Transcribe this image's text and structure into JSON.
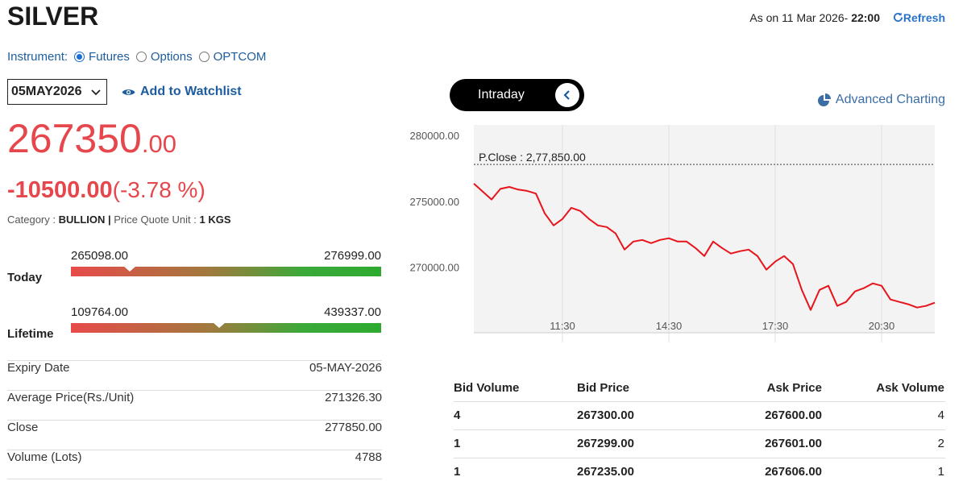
{
  "header": {
    "title": "SILVER",
    "as_on_label": "As on 11 Mar 2026-",
    "as_on_time": "22:00",
    "refresh": "Refresh"
  },
  "instrument": {
    "label": "Instrument:",
    "options": [
      {
        "label": "Futures",
        "selected": true
      },
      {
        "label": "Options",
        "selected": false
      },
      {
        "label": "OPTCOM",
        "selected": false
      }
    ]
  },
  "expiry_select": "05MAY2026",
  "watchlist": "Add to Watchlist",
  "quote": {
    "price_integer": "267350",
    "price_decimal": ".00",
    "change": "-10500.00",
    "change_percent": "(-3.78 %)",
    "category_label": "Category :",
    "category": "BULLION |",
    "unit_label": "Price Quote Unit :",
    "unit": "1 KGS"
  },
  "ranges": [
    {
      "label": "Today",
      "low": "265098.00",
      "high": "276999.00"
    },
    {
      "label": "Lifetime",
      "low": "109764.00",
      "high": "439337.00"
    }
  ],
  "details": [
    [
      "Expiry Date",
      "05-MAY-2026"
    ],
    [
      "Average Price(Rs./Unit)",
      "271326.30"
    ],
    [
      "Close",
      "277850.00"
    ],
    [
      "Volume (Lots)",
      "4788"
    ]
  ],
  "chart": {
    "toggle": "Intraday",
    "advanced": "Advanced Charting",
    "type": "line",
    "color": "#e8141b",
    "prev_close": {
      "value": 277850,
      "label": "P.Close : 2,77,850.00"
    },
    "x": [
      "09:00",
      "09:15",
      "09:30",
      "09:45",
      "10:00",
      "10:15",
      "10:30",
      "10:45",
      "11:00",
      "11:15",
      "11:30",
      "11:45",
      "12:00",
      "12:15",
      "12:30",
      "12:45",
      "13:00",
      "13:15",
      "13:30",
      "13:45",
      "14:00",
      "14:15",
      "14:30",
      "14:45",
      "15:00",
      "15:15",
      "15:30",
      "15:45",
      "16:00",
      "16:15",
      "16:30",
      "16:45",
      "17:00",
      "17:15",
      "17:30",
      "17:45",
      "18:00",
      "18:15",
      "18:30",
      "18:45",
      "19:00",
      "19:15",
      "19:30",
      "19:45",
      "20:00",
      "20:15",
      "20:30",
      "20:45",
      "21:00",
      "21:15",
      "21:30",
      "21:45",
      "22:00"
    ],
    "values": [
      276400,
      275800,
      275200,
      276000,
      276150,
      275950,
      275850,
      275650,
      274150,
      273230,
      273720,
      274570,
      274330,
      273720,
      273230,
      273110,
      272620,
      271400,
      272010,
      272130,
      271890,
      272130,
      272260,
      272010,
      272010,
      271520,
      270910,
      272010,
      271520,
      271100,
      271280,
      271400,
      270910,
      269880,
      270490,
      270910,
      270300,
      268350,
      266830,
      268350,
      268660,
      267130,
      267440,
      268230,
      268480,
      268840,
      268660,
      267620,
      267440,
      267260,
      267010,
      267130,
      267380
    ],
    "xlim": [
      "09:00",
      "22:00"
    ],
    "xticks": [
      "11:30",
      "14:30",
      "17:30",
      "20:30"
    ],
    "ylim": [
      265100,
      280850
    ],
    "yticks": [
      {
        "value": 280000,
        "label": "280000.00"
      },
      {
        "value": 275000,
        "label": "275000.00"
      },
      {
        "value": 270000,
        "label": "270000.00"
      }
    ]
  },
  "order_book": {
    "headers": [
      "Bid Volume",
      "Bid Price",
      "Ask Price",
      "Ask Volume"
    ],
    "rows": [
      [
        "4",
        "267300.00",
        "267600.00",
        "4"
      ],
      [
        "1",
        "267299.00",
        "267601.00",
        "2"
      ],
      [
        "1",
        "267235.00",
        "267606.00",
        "1"
      ]
    ]
  }
}
